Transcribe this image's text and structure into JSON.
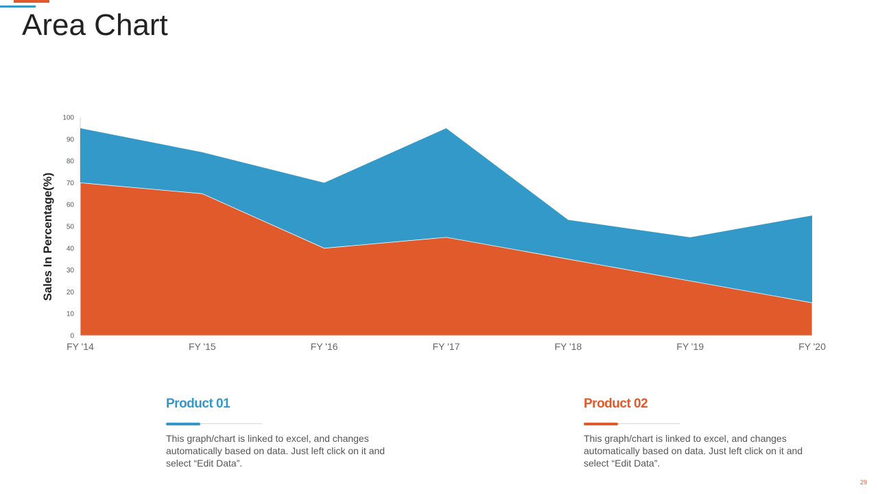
{
  "title": "Area Chart",
  "colors": {
    "product_01": "#3399c8",
    "product_02": "#e05a2b"
  },
  "chart_data": {
    "type": "area",
    "stacked": false,
    "categories": [
      "FY '14",
      "FY '15",
      "FY '16",
      "FY '17",
      "FY '18",
      "FY '19",
      "FY '20"
    ],
    "series": [
      {
        "name": "Product 01",
        "values": [
          95,
          84,
          70,
          95,
          53,
          45,
          55
        ]
      },
      {
        "name": "Product 02",
        "values": [
          70,
          65,
          40,
          45,
          35,
          25,
          15
        ]
      }
    ],
    "yticks": [
      0,
      10,
      20,
      30,
      40,
      50,
      60,
      70,
      80,
      90,
      100
    ],
    "ylim": [
      0,
      100
    ],
    "ylabel": "Sales In Percentage(%)",
    "xlabel": ""
  },
  "products": [
    {
      "title": "Product 01",
      "description": "This graph/chart is linked to excel, and changes automatically based on data. Just left click on it and select “Edit Data”."
    },
    {
      "title": "Product 02",
      "description": "This graph/chart is linked to excel, and changes automatically based on data. Just left click on it and select “Edit Data”."
    }
  ],
  "page_number": "29"
}
